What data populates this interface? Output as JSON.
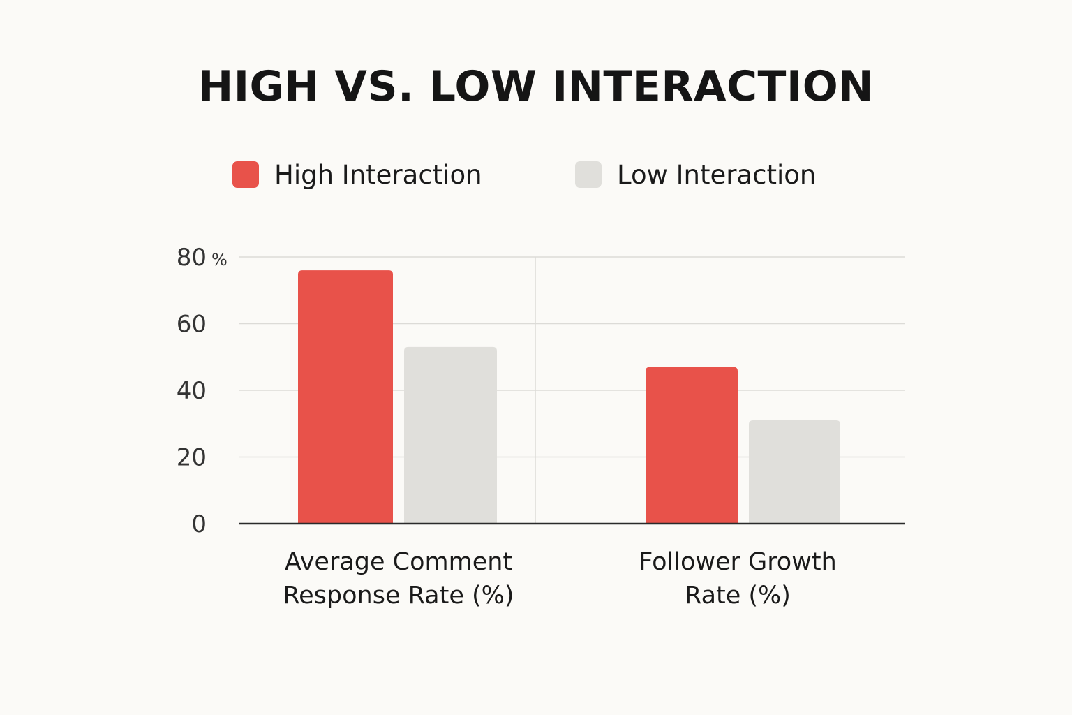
{
  "chart_data": {
    "type": "bar",
    "title": "HIGH VS. LOW INTERACTION",
    "categories": [
      [
        "Average Comment",
        "Response Rate (%)"
      ],
      [
        "Follower Growth",
        "Rate (%)"
      ]
    ],
    "series": [
      {
        "name": "High Interaction",
        "color": "#e8524a",
        "values": [
          76,
          47
        ]
      },
      {
        "name": "Low Interaction",
        "color": "#e0dfdb",
        "values": [
          53,
          31
        ]
      }
    ],
    "ylim": [
      0,
      80
    ],
    "yticks": [
      "0",
      "20",
      "40",
      "60",
      "80"
    ],
    "ytick_unit": "%",
    "xlabel": "",
    "ylabel": "",
    "grid": true,
    "legend_position": "top"
  }
}
